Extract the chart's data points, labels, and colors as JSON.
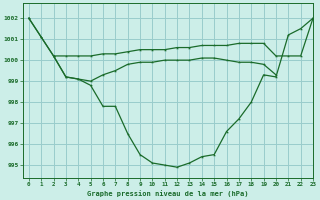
{
  "background_color": "#cceee8",
  "grid_color": "#99cccc",
  "line_color": "#1a6b2a",
  "title": "Graphe pression niveau de la mer (hPa)",
  "xlim": [
    -0.5,
    23
  ],
  "ylim": [
    994.4,
    1002.7
  ],
  "yticks": [
    995,
    996,
    997,
    998,
    999,
    1000,
    1001,
    1002
  ],
  "xticks": [
    0,
    1,
    2,
    3,
    4,
    5,
    6,
    7,
    8,
    9,
    10,
    11,
    12,
    13,
    14,
    15,
    16,
    17,
    18,
    19,
    20,
    21,
    22,
    23
  ],
  "series1_x": [
    0,
    1,
    2,
    3,
    4,
    5,
    6,
    7,
    8,
    9,
    10,
    11,
    12,
    13,
    14,
    15,
    16,
    17,
    18,
    19,
    20,
    21,
    22,
    23
  ],
  "series1_y": [
    1002.0,
    1001.1,
    1000.2,
    1000.2,
    1000.2,
    1000.2,
    1000.3,
    1000.3,
    1000.4,
    1000.5,
    1000.5,
    1000.5,
    1000.6,
    1000.6,
    1000.7,
    1000.7,
    1000.7,
    1000.8,
    1000.8,
    1000.8,
    1000.2,
    1000.2,
    1000.2,
    1002.0
  ],
  "series2_x": [
    0,
    1,
    2,
    3,
    4,
    5,
    6,
    7,
    8,
    9,
    10,
    11,
    12,
    13,
    14,
    15,
    16,
    17,
    18,
    19,
    20,
    21,
    22,
    23
  ],
  "series2_y": [
    1002.0,
    1001.1,
    1000.2,
    999.2,
    999.1,
    998.8,
    997.8,
    997.8,
    996.5,
    995.5,
    995.1,
    995.0,
    994.9,
    995.1,
    995.4,
    995.5,
    996.6,
    997.2,
    998.0,
    999.3,
    999.2,
    1001.2,
    1001.5,
    1002.0
  ],
  "series3_x": [
    2,
    3,
    4,
    5,
    6,
    7,
    8,
    9,
    10,
    11,
    12,
    13,
    14,
    15,
    16,
    17,
    18,
    19,
    20
  ],
  "series3_y": [
    1000.2,
    999.2,
    999.1,
    999.0,
    999.3,
    999.5,
    999.8,
    999.9,
    999.9,
    1000.0,
    1000.0,
    1000.0,
    1000.1,
    1000.1,
    1000.0,
    999.9,
    999.9,
    999.8,
    999.3
  ]
}
